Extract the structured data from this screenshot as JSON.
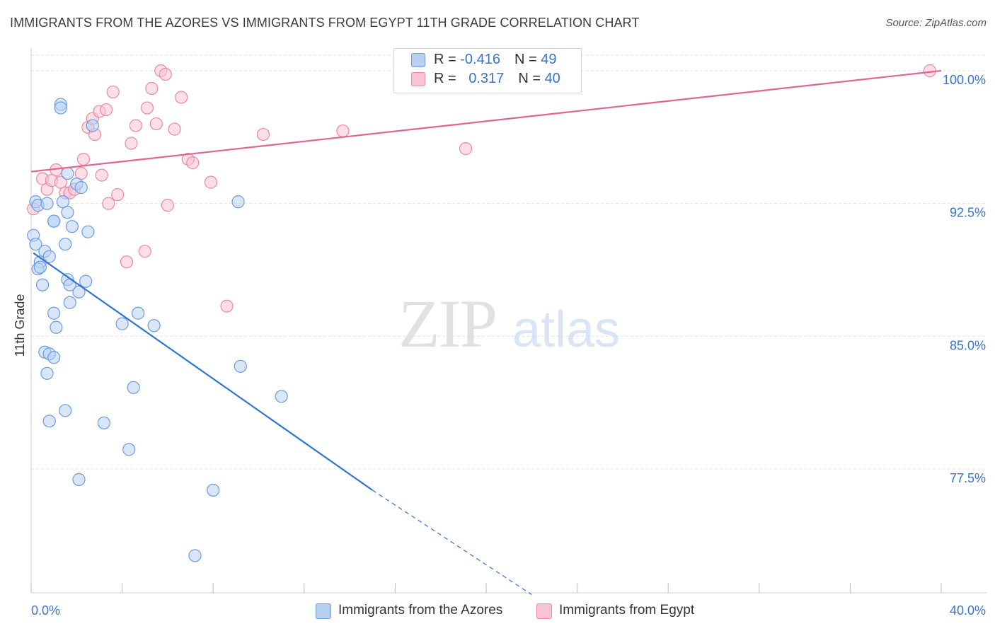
{
  "title": "IMMIGRANTS FROM THE AZORES VS IMMIGRANTS FROM EGYPT 11TH GRADE CORRELATION CHART",
  "source": "Source: ZipAtlas.com",
  "watermark": {
    "zip": "ZIP",
    "atlas": "atlas"
  },
  "legend": {
    "azores": {
      "r_label": "R = ",
      "r_value": "-0.416",
      "n_label": "N = ",
      "n_value": "49"
    },
    "egypt": {
      "r_label": "R = ",
      "r_value": "0.317",
      "n_label": "N = ",
      "n_value": "40"
    }
  },
  "colors": {
    "azores_fill": "#b8d1f3",
    "azores_stroke": "#6c9be0",
    "azores_line": "#2f74d0",
    "egypt_fill": "#f8c3d2",
    "egypt_stroke": "#e88aa6",
    "egypt_line": "#e06690",
    "tick_label": "#3a74c9",
    "grid": "#e3e3e3"
  },
  "chart_data": {
    "type": "scatter",
    "title": "IMMIGRANTS FROM THE AZORES VS IMMIGRANTS FROM EGYPT 11TH GRADE CORRELATION CHART",
    "xlabel": "",
    "ylabel": "11th Grade",
    "xlim": [
      0,
      40
    ],
    "ylim": [
      70.5,
      101.2
    ],
    "x_tick_labels": [
      {
        "value": 0,
        "label": "0.0%"
      },
      {
        "value": 40,
        "label": "40.0%"
      }
    ],
    "y_ticks": [
      {
        "value": 100.0,
        "label": "100.0%"
      },
      {
        "value": 92.5,
        "label": "92.5%"
      },
      {
        "value": 85.0,
        "label": "85.0%"
      },
      {
        "value": 77.5,
        "label": "77.5%"
      }
    ],
    "series": [
      {
        "name": "Immigrants from the Azores",
        "key": "azores",
        "trend": {
          "x0": 0.1,
          "y0": 89.7,
          "x1": 15.0,
          "y1": 76.3,
          "dash_to_x": 22.0,
          "dash_to_y": 70.4
        },
        "points": [
          [
            0.2,
            92.6
          ],
          [
            0.3,
            92.4
          ],
          [
            0.1,
            90.7
          ],
          [
            0.2,
            90.2
          ],
          [
            0.4,
            89.2
          ],
          [
            0.3,
            88.8
          ],
          [
            0.5,
            87.9
          ],
          [
            0.6,
            89.8
          ],
          [
            0.7,
            92.5
          ],
          [
            0.8,
            89.5
          ],
          [
            1.0,
            91.5
          ],
          [
            0.6,
            84.1
          ],
          [
            0.7,
            82.9
          ],
          [
            0.8,
            84.0
          ],
          [
            0.8,
            80.2
          ],
          [
            1.0,
            86.3
          ],
          [
            1.1,
            85.5
          ],
          [
            1.0,
            83.8
          ],
          [
            1.3,
            98.1
          ],
          [
            1.3,
            97.9
          ],
          [
            1.4,
            92.6
          ],
          [
            1.5,
            90.2
          ],
          [
            1.6,
            94.2
          ],
          [
            1.6,
            88.2
          ],
          [
            1.6,
            92.0
          ],
          [
            1.7,
            87.9
          ],
          [
            1.7,
            86.9
          ],
          [
            1.5,
            80.8
          ],
          [
            1.8,
            91.2
          ],
          [
            2.0,
            93.6
          ],
          [
            2.1,
            87.5
          ],
          [
            2.2,
            93.4
          ],
          [
            2.4,
            88.1
          ],
          [
            2.5,
            90.9
          ],
          [
            2.7,
            96.9
          ],
          [
            2.1,
            76.9
          ],
          [
            3.2,
            80.1
          ],
          [
            4.0,
            85.7
          ],
          [
            4.3,
            78.6
          ],
          [
            4.5,
            82.1
          ],
          [
            4.7,
            86.3
          ],
          [
            5.4,
            85.6
          ],
          [
            7.2,
            72.6
          ],
          [
            8.0,
            76.3
          ],
          [
            9.1,
            92.6
          ],
          [
            9.2,
            83.3
          ],
          [
            11.0,
            81.6
          ],
          [
            1.0,
            91.5
          ],
          [
            0.4,
            88.9
          ]
        ]
      },
      {
        "name": "Immigrants from Egypt",
        "key": "egypt",
        "trend": {
          "x0": 0.0,
          "y0": 94.3,
          "x1": 40.0,
          "y1": 100.0
        },
        "points": [
          [
            0.1,
            92.2
          ],
          [
            0.5,
            93.9
          ],
          [
            0.7,
            93.3
          ],
          [
            0.9,
            93.8
          ],
          [
            1.1,
            94.4
          ],
          [
            1.3,
            93.7
          ],
          [
            1.5,
            93.1
          ],
          [
            1.7,
            93.1
          ],
          [
            1.9,
            93.3
          ],
          [
            2.2,
            94.2
          ],
          [
            2.3,
            95.0
          ],
          [
            2.5,
            96.8
          ],
          [
            2.7,
            97.3
          ],
          [
            2.8,
            96.4
          ],
          [
            3.0,
            97.7
          ],
          [
            3.1,
            94.1
          ],
          [
            3.3,
            97.8
          ],
          [
            3.4,
            92.5
          ],
          [
            3.6,
            98.8
          ],
          [
            3.8,
            93.0
          ],
          [
            4.2,
            89.2
          ],
          [
            4.4,
            95.9
          ],
          [
            4.6,
            96.9
          ],
          [
            5.0,
            89.8
          ],
          [
            5.1,
            97.9
          ],
          [
            5.3,
            99.0
          ],
          [
            5.5,
            97.0
          ],
          [
            5.7,
            100.0
          ],
          [
            5.9,
            99.8
          ],
          [
            6.0,
            92.4
          ],
          [
            6.3,
            96.7
          ],
          [
            6.6,
            98.5
          ],
          [
            6.9,
            95.0
          ],
          [
            7.1,
            94.8
          ],
          [
            7.9,
            93.7
          ],
          [
            8.6,
            86.7
          ],
          [
            10.2,
            96.4
          ],
          [
            13.7,
            96.6
          ],
          [
            19.1,
            95.6
          ],
          [
            39.5,
            100.0
          ]
        ]
      }
    ]
  },
  "bottom_legend": {
    "azores_label": "Immigrants from the Azores",
    "egypt_label": "Immigrants from Egypt"
  }
}
